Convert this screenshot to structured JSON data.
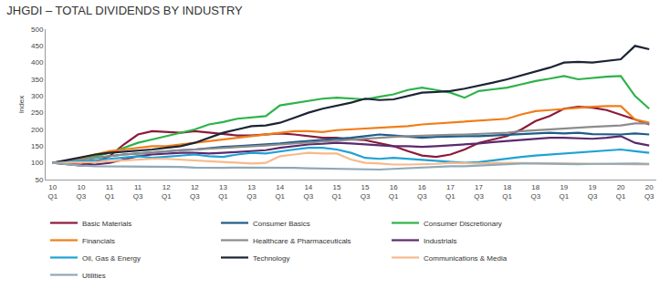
{
  "chart_data": {
    "type": "line",
    "title": "JHGDI – TOTAL DIVIDENDS BY INDUSTRY",
    "y_label": "Index",
    "categories": [
      "10 Q1",
      null,
      "10 Q3",
      null,
      "11 Q1",
      null,
      "11 Q3",
      null,
      "12 Q1",
      null,
      "12 Q3",
      null,
      "13 Q1",
      null,
      "13 Q3",
      null,
      "14 Q1",
      null,
      "14 Q3",
      null,
      "15 Q1",
      null,
      "15 Q3",
      null,
      "16 Q1",
      null,
      "16 Q3",
      null,
      "17 Q1",
      null,
      "17 Q3",
      null,
      "18 Q1",
      null,
      "18 Q3",
      null,
      "19 Q1",
      null,
      "19 Q3",
      null,
      "20 Q1",
      null,
      "20 Q3"
    ],
    "ylim": [
      50,
      500
    ],
    "yticks": [
      50,
      100,
      150,
      200,
      250,
      300,
      350,
      400,
      450,
      500
    ],
    "grid": false,
    "legend": "bottom",
    "series": [
      {
        "name": "Basic Materials",
        "color": "#8b1a3a",
        "values": [
          100,
          97,
          95,
          102,
          120,
          155,
          185,
          195,
          192,
          190,
          195,
          190,
          185,
          182,
          182,
          185,
          188,
          185,
          180,
          175,
          175,
          170,
          168,
          160,
          150,
          135,
          122,
          118,
          125,
          140,
          160,
          170,
          180,
          200,
          225,
          240,
          262,
          268,
          265,
          258,
          245,
          230,
          215
        ]
      },
      {
        "name": "Consumer Basics",
        "color": "#1f5c8a",
        "values": [
          100,
          105,
          110,
          115,
          120,
          125,
          128,
          132,
          135,
          138,
          140,
          145,
          148,
          150,
          152,
          155,
          158,
          162,
          165,
          168,
          170,
          175,
          180,
          185,
          182,
          178,
          175,
          178,
          180,
          180,
          180,
          182,
          183,
          185,
          188,
          190,
          188,
          190,
          186,
          185,
          185,
          188,
          185
        ]
      },
      {
        "name": "Consumer Discretionary",
        "color": "#2db34a",
        "values": [
          100,
          105,
          112,
          120,
          130,
          145,
          160,
          170,
          180,
          190,
          200,
          215,
          222,
          232,
          235,
          240,
          272,
          278,
          285,
          292,
          295,
          293,
          290,
          298,
          305,
          318,
          325,
          318,
          310,
          295,
          315,
          320,
          325,
          335,
          345,
          352,
          360,
          350,
          355,
          358,
          360,
          300,
          262
        ]
      },
      {
        "name": "Financials",
        "color": "#f07d1a",
        "values": [
          100,
          105,
          115,
          125,
          135,
          140,
          145,
          150,
          150,
          155,
          160,
          165,
          170,
          175,
          180,
          185,
          190,
          195,
          195,
          192,
          198,
          200,
          203,
          205,
          207,
          210,
          215,
          218,
          220,
          223,
          225,
          230,
          232,
          245,
          255,
          258,
          262,
          265,
          268,
          270,
          270,
          230,
          220
        ]
      },
      {
        "name": "Healthcare & Pharmaceuticals",
        "color": "#8c8c8c",
        "values": [
          100,
          105,
          110,
          115,
          120,
          125,
          128,
          132,
          135,
          138,
          140,
          142,
          145,
          148,
          150,
          152,
          155,
          158,
          162,
          165,
          168,
          170,
          172,
          175,
          178,
          180,
          182,
          183,
          184,
          185,
          186,
          188,
          190,
          195,
          198,
          200,
          203,
          205,
          208,
          210,
          212,
          218,
          218
        ]
      },
      {
        "name": "Industrials",
        "color": "#5b2a6e",
        "values": [
          100,
          95,
          92,
          95,
          100,
          110,
          120,
          125,
          128,
          130,
          130,
          128,
          130,
          132,
          135,
          138,
          145,
          150,
          155,
          157,
          160,
          158,
          155,
          152,
          150,
          150,
          148,
          150,
          152,
          155,
          158,
          162,
          165,
          168,
          172,
          175,
          175,
          173,
          172,
          175,
          180,
          160,
          152
        ]
      },
      {
        "name": "Oil, Gas & Energy",
        "color": "#1fa2d6",
        "values": [
          100,
          102,
          105,
          108,
          112,
          115,
          120,
          115,
          118,
          122,
          125,
          120,
          118,
          125,
          130,
          128,
          135,
          140,
          145,
          145,
          140,
          130,
          115,
          112,
          115,
          112,
          108,
          105,
          102,
          100,
          102,
          108,
          112,
          118,
          122,
          125,
          130,
          133,
          135,
          138,
          140,
          135,
          130
        ]
      },
      {
        "name": "Technology",
        "color": "#1b2434",
        "values": [
          100,
          108,
          115,
          125,
          130,
          133,
          135,
          140,
          145,
          150,
          160,
          175,
          190,
          200,
          210,
          212,
          220,
          235,
          250,
          262,
          270,
          280,
          292,
          288,
          290,
          300,
          310,
          312,
          315,
          322,
          330,
          340,
          350,
          362,
          375,
          385,
          400,
          402,
          400,
          405,
          410,
          450,
          440
        ]
      },
      {
        "name": "Communications & Media",
        "color": "#f7b98c",
        "values": [
          100,
          100,
          100,
          102,
          105,
          108,
          110,
          112,
          112,
          110,
          108,
          105,
          102,
          100,
          98,
          100,
          120,
          125,
          130,
          128,
          128,
          110,
          100,
          98,
          95,
          95,
          95,
          97,
          100,
          98,
          98,
          100,
          100,
          100,
          100,
          100,
          98,
          98,
          97,
          96,
          97,
          95,
          95
        ]
      },
      {
        "name": "Utilities",
        "color": "#8fa9b8",
        "values": [
          100,
          95,
          92,
          90,
          90,
          90,
          88,
          88,
          90,
          88,
          86,
          85,
          85,
          86,
          86,
          87,
          86,
          85,
          84,
          83,
          82,
          80,
          79,
          80,
          82,
          84,
          86,
          88,
          90,
          90,
          92,
          95,
          96,
          98,
          98,
          97,
          96,
          96,
          97,
          98,
          98,
          98,
          97
        ]
      }
    ]
  }
}
